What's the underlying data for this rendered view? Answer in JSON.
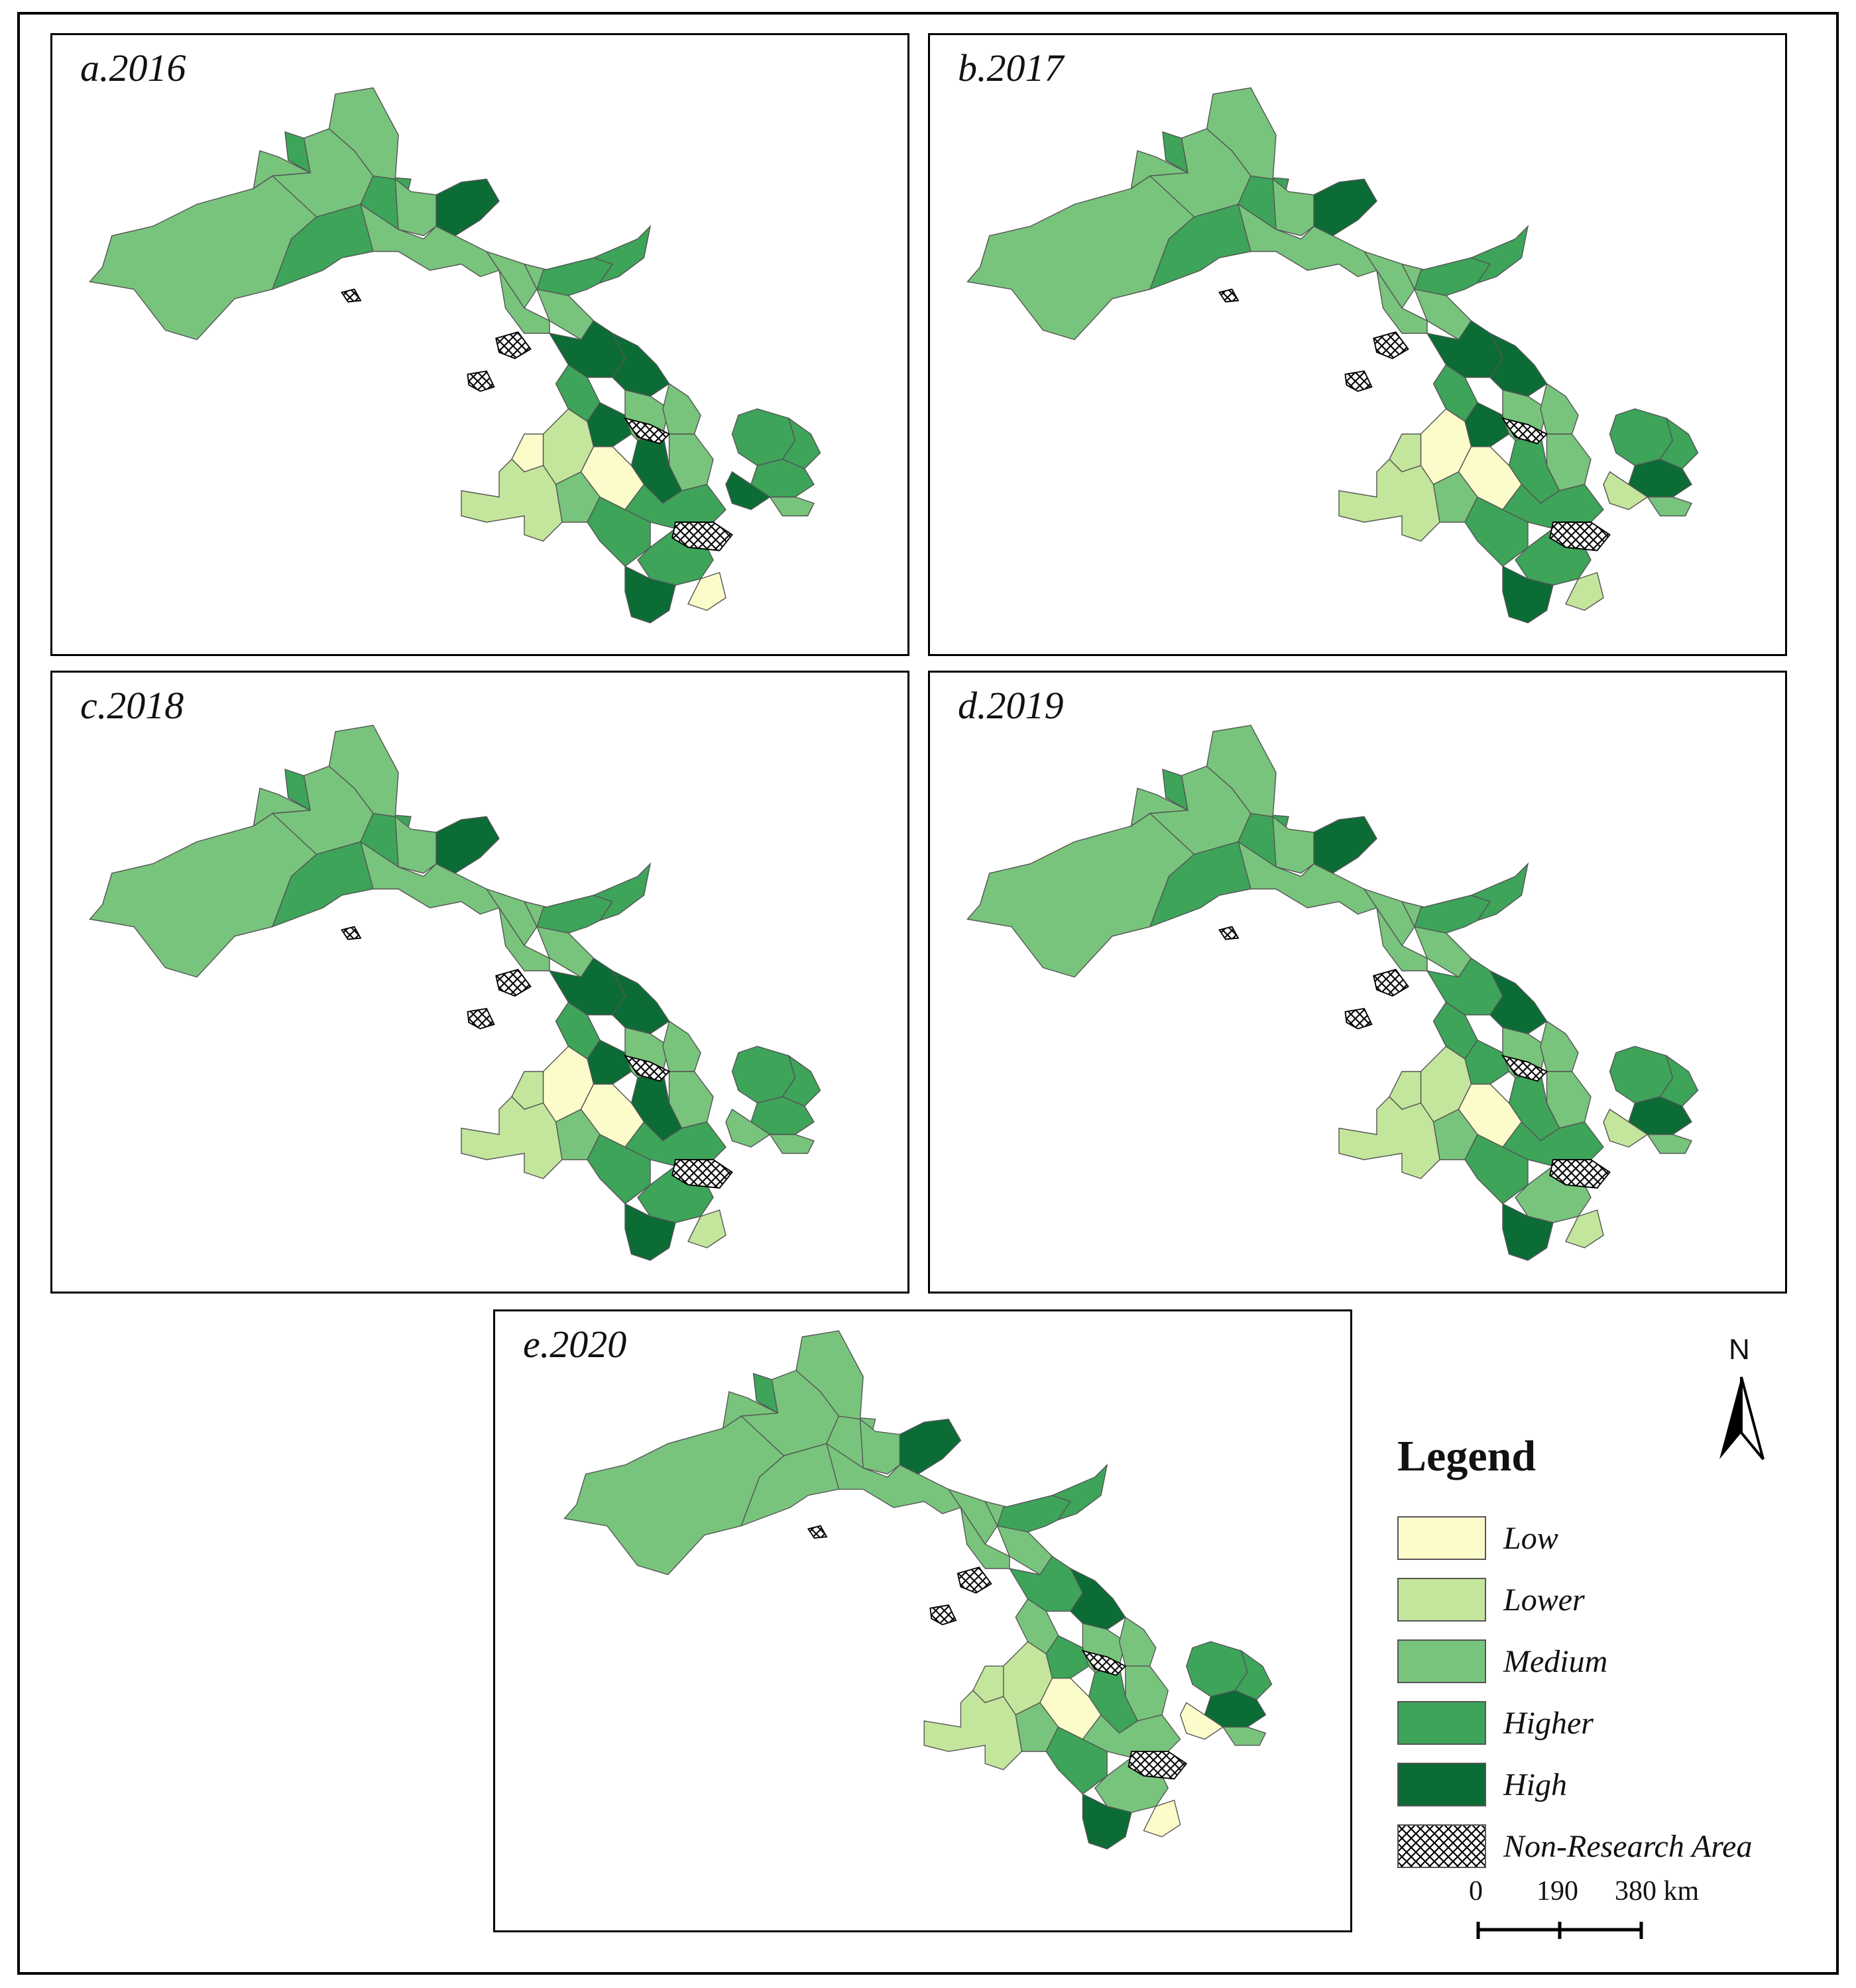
{
  "panels": [
    {
      "label": "a.2016"
    },
    {
      "label": "b.2017"
    },
    {
      "label": "c.2018"
    },
    {
      "label": "d.2019"
    },
    {
      "label": "e.2020"
    }
  ],
  "legend": {
    "title": "Legend",
    "items": [
      {
        "label": "Low",
        "color": "#fcfccb"
      },
      {
        "label": "Lower",
        "color": "#c4e69c"
      },
      {
        "label": "Medium",
        "color": "#78c47c"
      },
      {
        "label": "Higher",
        "color": "#3da45a"
      },
      {
        "label": "High",
        "color": "#0b6c35"
      },
      {
        "label": "Non-Research Area",
        "pattern": "crosshatch"
      }
    ]
  },
  "north_arrow": {
    "label": "N"
  },
  "scale_bar": {
    "ticks": [
      "0",
      "190",
      "380 km"
    ]
  },
  "colors": {
    "low": "#fcfccb",
    "lower": "#c4e69c",
    "medium": "#78c47c",
    "higher": "#3da45a",
    "high": "#0b6c35",
    "border": "#555555"
  }
}
